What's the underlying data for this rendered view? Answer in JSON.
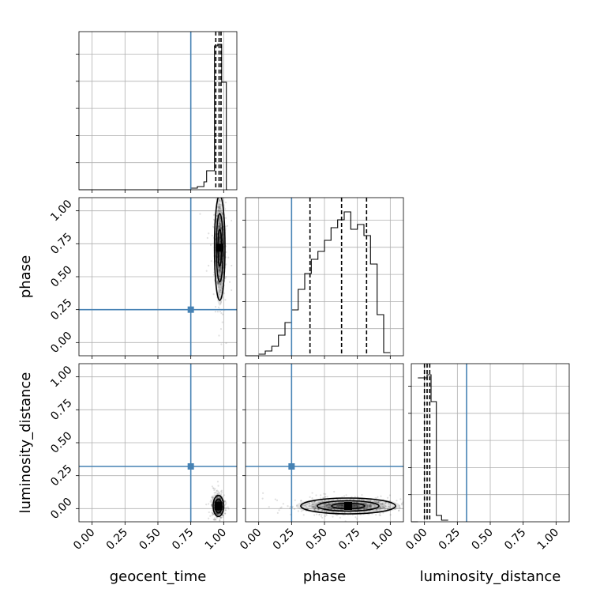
{
  "chart_data": {
    "type": "corner",
    "parameters": [
      "geocent_time",
      "phase",
      "luminosity_distance"
    ],
    "truth": {
      "geocent_time": 0.75,
      "phase": 0.25,
      "luminosity_distance": 0.32
    },
    "truth_color": "#4682b4",
    "axis_range": [
      -0.1,
      1.1
    ],
    "ticks": [
      0.0,
      0.25,
      0.5,
      0.75,
      1.0
    ],
    "tick_labels": [
      "0.00",
      "0.25",
      "0.50",
      "0.75",
      "1.00"
    ],
    "grid": true,
    "diagonals": [
      {
        "parameter": "geocent_time",
        "quantiles": [
          0.94,
          0.965,
          0.98
        ],
        "histogram": [
          {
            "x0": 0.75,
            "x1": 0.8,
            "h": 0.01
          },
          {
            "x0": 0.8,
            "x1": 0.85,
            "h": 0.02
          },
          {
            "x0": 0.85,
            "x1": 0.87,
            "h": 0.05
          },
          {
            "x0": 0.87,
            "x1": 0.89,
            "h": 0.12
          },
          {
            "x0": 0.89,
            "x1": 0.93,
            "h": 0.12
          },
          {
            "x0": 0.93,
            "x1": 0.955,
            "h": 0.91
          },
          {
            "x0": 0.955,
            "x1": 0.985,
            "h": 0.92
          },
          {
            "x0": 0.985,
            "x1": 1.02,
            "h": 0.68
          },
          {
            "x0": 1.02,
            "x1": 1.03,
            "h": 0.0
          }
        ]
      },
      {
        "parameter": "phase",
        "quantiles": [
          0.39,
          0.63,
          0.82
        ],
        "histogram": [
          {
            "x0": 0.0,
            "x1": 0.05,
            "h": 0.01
          },
          {
            "x0": 0.05,
            "x1": 0.1,
            "h": 0.03
          },
          {
            "x0": 0.1,
            "x1": 0.15,
            "h": 0.06
          },
          {
            "x0": 0.15,
            "x1": 0.2,
            "h": 0.13
          },
          {
            "x0": 0.2,
            "x1": 0.25,
            "h": 0.21
          },
          {
            "x0": 0.25,
            "x1": 0.3,
            "h": 0.29
          },
          {
            "x0": 0.3,
            "x1": 0.35,
            "h": 0.42
          },
          {
            "x0": 0.35,
            "x1": 0.4,
            "h": 0.52
          },
          {
            "x0": 0.4,
            "x1": 0.45,
            "h": 0.61
          },
          {
            "x0": 0.45,
            "x1": 0.5,
            "h": 0.66
          },
          {
            "x0": 0.5,
            "x1": 0.55,
            "h": 0.73
          },
          {
            "x0": 0.55,
            "x1": 0.6,
            "h": 0.81
          },
          {
            "x0": 0.6,
            "x1": 0.65,
            "h": 0.86
          },
          {
            "x0": 0.65,
            "x1": 0.7,
            "h": 0.91
          },
          {
            "x0": 0.7,
            "x1": 0.75,
            "h": 0.8
          },
          {
            "x0": 0.75,
            "x1": 0.8,
            "h": 0.83
          },
          {
            "x0": 0.8,
            "x1": 0.85,
            "h": 0.76
          },
          {
            "x0": 0.85,
            "x1": 0.9,
            "h": 0.58
          },
          {
            "x0": 0.9,
            "x1": 0.95,
            "h": 0.26
          },
          {
            "x0": 0.95,
            "x1": 1.0,
            "h": 0.02
          }
        ]
      },
      {
        "parameter": "luminosity_distance",
        "quantiles": [
          0.0,
          0.02,
          0.04
        ],
        "histogram": [
          {
            "x0": -0.05,
            "x1": 0.02,
            "h": 0.91
          },
          {
            "x0": 0.02,
            "x1": 0.05,
            "h": 0.93
          },
          {
            "x0": 0.05,
            "x1": 0.09,
            "h": 0.76
          },
          {
            "x0": 0.09,
            "x1": 0.13,
            "h": 0.04
          },
          {
            "x0": 0.13,
            "x1": 0.18,
            "h": 0.01
          }
        ]
      }
    ],
    "off_diagonal": [
      {
        "x": "geocent_time",
        "y": "phase",
        "density_peak": [
          0.97,
          0.72
        ],
        "spread": [
          0.02,
          0.2
        ]
      },
      {
        "x": "geocent_time",
        "y": "luminosity_distance",
        "density_peak": [
          0.96,
          0.02
        ],
        "spread": [
          0.02,
          0.04
        ]
      },
      {
        "x": "phase",
        "y": "luminosity_distance",
        "density_peak": [
          0.68,
          0.02
        ],
        "spread": [
          0.18,
          0.03
        ]
      }
    ]
  }
}
